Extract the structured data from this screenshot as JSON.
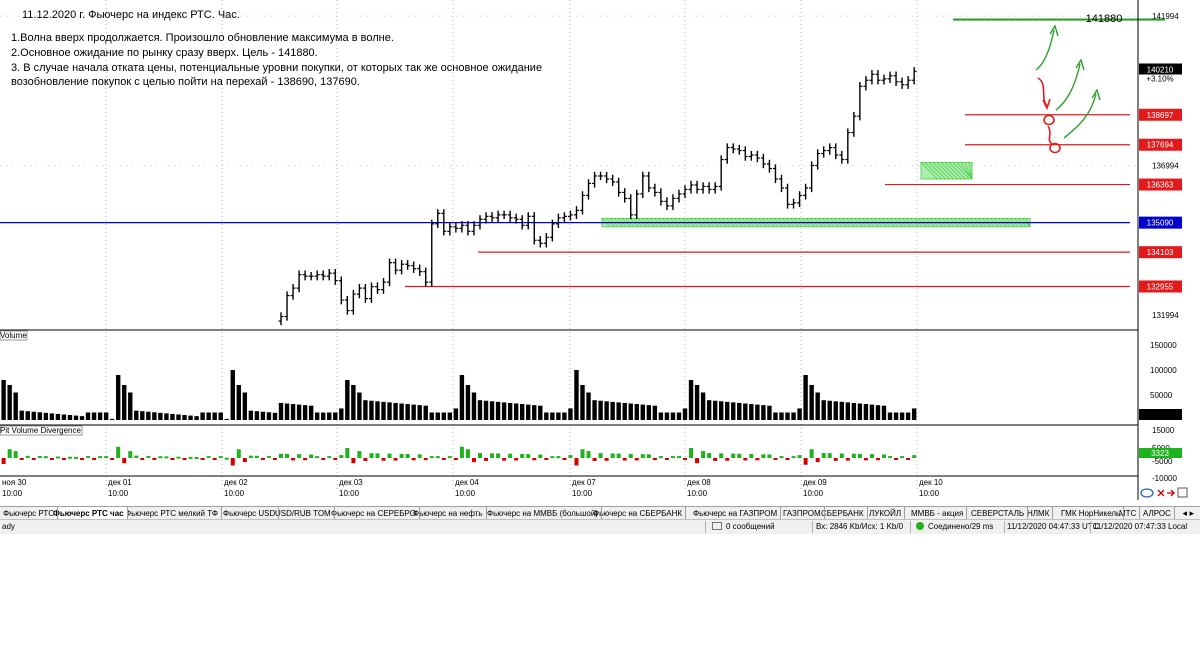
{
  "annotations": {
    "title": "11.12.2020 г. Фьючерс на индекс РТС. Час.",
    "line1": "1.Волна вверх продолжается. Произошло обновление максимума в волне.",
    "line2": "2.Основное ожидание по рынку сразу вверх. Цель - 141880.",
    "line3": "3. В случае начала отката цены, потенциальные уровни покупки, от которых так же основное ожидание",
    "line3b": "возобновление покупок с целью пойти на перехай - 138690, 137690."
  },
  "chart_data": [
    {
      "type": "line",
      "title": "",
      "price_scale": {
        "min": 131500,
        "max": 142400
      },
      "price_axis_ticks": [
        "141994",
        "136994",
        "131994"
      ],
      "x_time_labels": [
        "нoя 30",
        "дек 01",
        "дек 02",
        "дек 03",
        "дек 04",
        "дек 07",
        "дек 08",
        "дек 09",
        "дек 10"
      ],
      "x_time_sublabel": "10:00",
      "last_price": "140210",
      "last_change": "+3.10%",
      "target": {
        "label": "141880",
        "value": 141880,
        "color": "#2aa02a"
      },
      "levels": [
        {
          "label": "138697",
          "value": 138697,
          "color": "#e31a1c"
        },
        {
          "label": "137694",
          "value": 137694,
          "color": "#e31a1c"
        },
        {
          "label": "136363",
          "value": 136363,
          "color": "#e31a1c"
        },
        {
          "label": "135090",
          "value": 135090,
          "color": "#0000cc"
        },
        {
          "label": "134103",
          "value": 134103,
          "color": "#e31a1c"
        },
        {
          "label": "132955",
          "value": 132955,
          "color": "#e31a1c"
        }
      ],
      "zones": [
        {
          "from": 134950,
          "to": 135230
        },
        {
          "from": 136550,
          "to": 137100
        }
      ],
      "close": [
        131950,
        132650,
        132900,
        133350,
        133300,
        133300,
        133350,
        133300,
        133400,
        133150,
        132500,
        132150,
        132700,
        132900,
        132550,
        132950,
        132850,
        133100,
        133750,
        133500,
        133700,
        133650,
        133550,
        133450,
        133100,
        135050,
        135400,
        134800,
        134950,
        134900,
        135000,
        134800,
        135000,
        135200,
        135300,
        135250,
        135350,
        135350,
        135250,
        135200,
        135000,
        135300,
        134500,
        134400,
        134600,
        135050,
        135250,
        135300,
        135350,
        135500,
        136000,
        136400,
        136650,
        136650,
        136550,
        136450,
        136100,
        135900,
        135350,
        136050,
        136650,
        136250,
        136100,
        135800,
        135650,
        135900,
        136050,
        136200,
        136350,
        136200,
        136300,
        136200,
        136300,
        137200,
        137600,
        137550,
        137500,
        137300,
        137350,
        137250,
        137050,
        136900,
        136550,
        136250,
        135700,
        135750,
        136000,
        136250,
        137000,
        137400,
        137500,
        137600,
        137350,
        137200,
        138100,
        138650,
        139650,
        139850,
        140050,
        139850,
        139900,
        140000,
        139800,
        139700,
        139850,
        140150
      ],
      "volume_panel": {
        "label": "Volume",
        "ticks": [
          "150000",
          "100000",
          "50000"
        ]
      },
      "divergence_panel": {
        "label": "Pit Volume Divergence",
        "ticks": [
          "15000",
          "5000",
          "-5000",
          "-10000"
        ],
        "value_badge": "3323"
      }
    }
  ],
  "tabs": [
    "Фьючерс РТС",
    "Фьючерс РТС час",
    "Фьючерс РТС мелкий ТФ",
    "Фьючерс USD",
    "USD/RUB TOM",
    "Фьючерс на СЕРЕБРО",
    "Фьючерс на нефть",
    "Фьючерс на ММВБ (большой)",
    "Фьючерс на СБЕРБАНК",
    "Фьючерс на ГАЗПРОМ",
    "ГАЗПРОМ",
    "СБЕРБАНК",
    "ЛУКОЙЛ",
    "ММВБ - акция",
    "СЕВЕРСТАЛЬ",
    "НЛМК",
    "ГМК НорНикель",
    "МТС",
    "АЛРОС"
  ],
  "tab_arrows": "◂ ▸",
  "status": {
    "ready": "ady",
    "messages": "0 сообщений",
    "traffic": "Вх: 2846 Kb/Исх: 1 Kb/0",
    "connection": "Соединено/29 ms",
    "utc_time": "11/12/2020 04:47:33 UTC",
    "local_time": "11/12/2020 07:47:33 Local"
  },
  "colors": {
    "bars": "#000000",
    "resistance": "#e31a1c",
    "support_blue": "#0000cc",
    "target_green": "#2aa02a",
    "zone_green": "#33cc33",
    "volume_up": "#1db31d",
    "volume_down": "#d40000"
  }
}
